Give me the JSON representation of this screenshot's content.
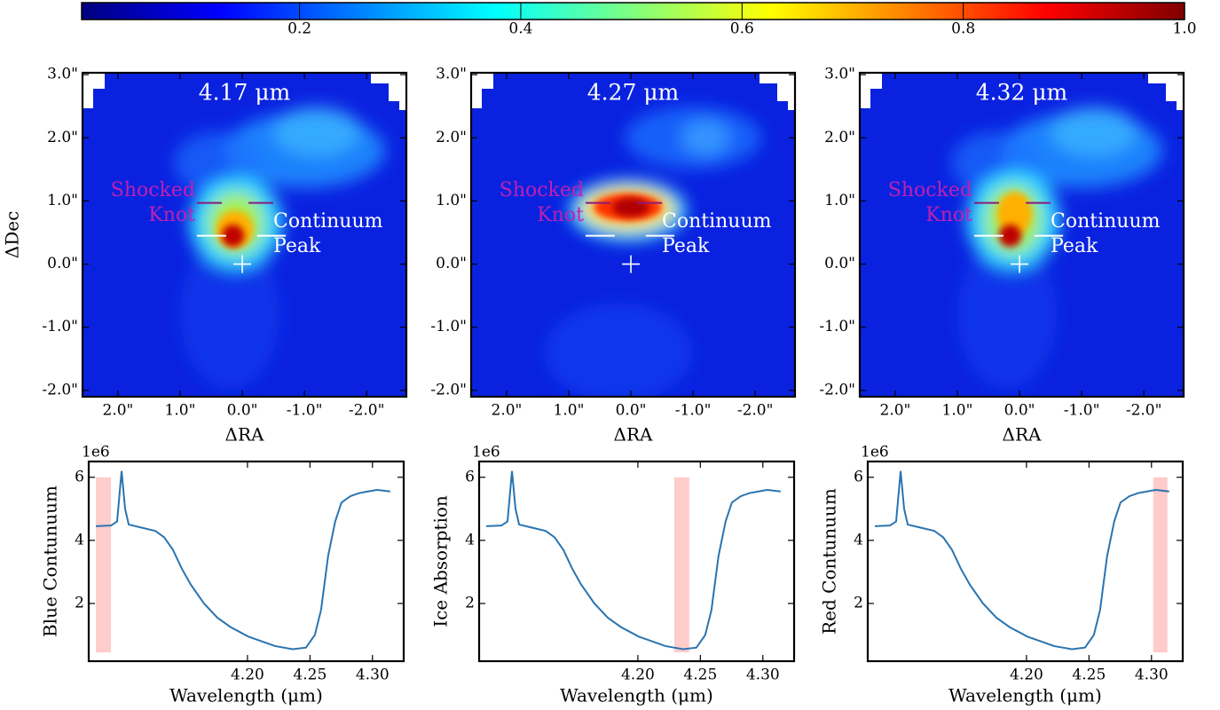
{
  "colorbar": {
    "colormap": "jet",
    "lim": [
      0.003,
      1.0
    ],
    "ticks": [
      0.2,
      0.4,
      0.6,
      0.8,
      {
        "value": 1.0,
        "label": "1.0"
      }
    ]
  },
  "chart_data": [
    {
      "type": "image",
      "title": "4.17 μm",
      "xlabel": "ΔRA",
      "ylabel": "ΔDec",
      "xlim": [
        2.57,
        -2.64
      ],
      "ylim": [
        -2.1,
        3.03
      ],
      "xticks": [
        {
          "value": 2,
          "label": "2.0\""
        },
        {
          "value": 1,
          "label": "1.0\""
        },
        {
          "value": 0,
          "label": "0.0\""
        },
        {
          "value": -1,
          "label": "-1.0\""
        },
        {
          "value": -2,
          "label": "-2.0\""
        }
      ],
      "yticks": [
        {
          "value": 3,
          "label": "3.0\""
        },
        {
          "value": 2,
          "label": "2.0\""
        },
        {
          "value": 1,
          "label": "1.0\""
        },
        {
          "value": 0,
          "label": "0.0\""
        },
        {
          "value": -1,
          "label": "-1.0\""
        },
        {
          "value": -2,
          "label": "-2.0\""
        }
      ],
      "markers": [
        {
          "x": 0,
          "y": 0,
          "color": "#ffffff"
        }
      ],
      "segments": [
        {
          "x": [
            0.73,
            0.26
          ],
          "y": [
            0.45,
            0.45
          ],
          "color": "#ffffff"
        },
        {
          "x": [
            -0.24,
            -0.7
          ],
          "y": [
            0.45,
            0.45
          ],
          "color": "#ffffff"
        },
        {
          "x": [
            0.73,
            0.33
          ],
          "y": [
            0.97,
            0.97
          ],
          "color": "#8a1a7a"
        },
        {
          "x": [
            -0.1,
            -0.5
          ],
          "y": [
            0.97,
            0.97
          ],
          "color": "#8a1a7a"
        }
      ],
      "annotations": [
        {
          "lines": [
            "Shocked",
            "Knot"
          ],
          "color": "#c020b0"
        },
        {
          "lines": [
            "Continuum",
            "Peak"
          ],
          "color": "#ffffff"
        }
      ]
    },
    {
      "type": "image",
      "title": "4.27 μm",
      "xlabel": "ΔRA",
      "xlim": [
        2.57,
        -2.64
      ],
      "ylim": [
        -2.1,
        3.03
      ],
      "xticks": [
        {
          "value": 2,
          "label": "2.0\""
        },
        {
          "value": 1,
          "label": "1.0\""
        },
        {
          "value": 0,
          "label": "0.0\""
        },
        {
          "value": -1,
          "label": "-1.0\""
        },
        {
          "value": -2,
          "label": "-2.0\""
        }
      ],
      "yticks": [
        {
          "value": 3,
          "label": "3.0\""
        },
        {
          "value": 2,
          "label": "2.0\""
        },
        {
          "value": 1,
          "label": "1.0\""
        },
        {
          "value": 0,
          "label": "0.0\""
        },
        {
          "value": -1,
          "label": "-1.0\""
        },
        {
          "value": -2,
          "label": "-2.0\""
        }
      ],
      "markers": [
        {
          "x": 0,
          "y": 0,
          "color": "#ffffff"
        }
      ],
      "segments": [
        {
          "x": [
            0.73,
            0.26
          ],
          "y": [
            0.45,
            0.45
          ],
          "color": "#ffffff"
        },
        {
          "x": [
            -0.24,
            -0.7
          ],
          "y": [
            0.45,
            0.45
          ],
          "color": "#ffffff"
        },
        {
          "x": [
            0.73,
            0.33
          ],
          "y": [
            0.97,
            0.97
          ],
          "color": "#8a1a7a"
        },
        {
          "x": [
            -0.1,
            -0.5
          ],
          "y": [
            0.97,
            0.97
          ],
          "color": "#8a1a7a"
        }
      ],
      "annotations": [
        {
          "lines": [
            "Shocked",
            "Knot"
          ],
          "color": "#c020b0"
        },
        {
          "lines": [
            "Continuum",
            "Peak"
          ],
          "color": "#ffffff"
        }
      ]
    },
    {
      "type": "image",
      "title": "4.32 μm",
      "xlabel": "ΔRA",
      "xlim": [
        2.57,
        -2.64
      ],
      "ylim": [
        -2.1,
        3.03
      ],
      "xticks": [
        {
          "value": 2,
          "label": "2.0\""
        },
        {
          "value": 1,
          "label": "1.0\""
        },
        {
          "value": 0,
          "label": "0.0\""
        },
        {
          "value": -1,
          "label": "-1.0\""
        },
        {
          "value": -2,
          "label": "-2.0\""
        }
      ],
      "yticks": [
        {
          "value": 3,
          "label": "3.0\""
        },
        {
          "value": 2,
          "label": "2.0\""
        },
        {
          "value": 1,
          "label": "1.0\""
        },
        {
          "value": 0,
          "label": "0.0\""
        },
        {
          "value": -1,
          "label": "-1.0\""
        },
        {
          "value": -2,
          "label": "-2.0\""
        }
      ],
      "markers": [
        {
          "x": 0,
          "y": 0,
          "color": "#ffffff"
        }
      ],
      "segments": [
        {
          "x": [
            0.73,
            0.26
          ],
          "y": [
            0.45,
            0.45
          ],
          "color": "#ffffff"
        },
        {
          "x": [
            -0.24,
            -0.7
          ],
          "y": [
            0.45,
            0.45
          ],
          "color": "#ffffff"
        },
        {
          "x": [
            0.73,
            0.33
          ],
          "y": [
            0.97,
            0.97
          ],
          "color": "#8a1a7a"
        },
        {
          "x": [
            -0.1,
            -0.5
          ],
          "y": [
            0.97,
            0.97
          ],
          "color": "#8a1a7a"
        }
      ],
      "annotations": [
        {
          "lines": [
            "Shocked",
            "Knot"
          ],
          "color": "#c020b0"
        },
        {
          "lines": [
            "Continuum",
            "Peak"
          ],
          "color": "#ffffff"
        }
      ]
    },
    {
      "type": "line",
      "xlabel": "Wavelength (μm)",
      "ylabel": "Blue Contunuum",
      "offset_label": "1e6",
      "xlim": [
        4.073,
        4.325
      ],
      "ylim": [
        0.17,
        6.5
      ],
      "xticks": [
        {
          "value": 4.2,
          "label": "4.20"
        },
        4.25,
        {
          "value": 4.3,
          "label": "4.30"
        }
      ],
      "yticks": [
        2,
        4,
        6
      ],
      "x": [
        4.0787,
        4.0908,
        4.0957,
        4.0993,
        4.1021,
        4.105,
        4.1156,
        4.1262,
        4.1333,
        4.1404,
        4.1475,
        4.1546,
        4.1652,
        4.1759,
        4.1865,
        4.1936,
        4.2007,
        4.2113,
        4.222,
        4.2362,
        4.2468,
        4.2539,
        4.2589,
        4.2645,
        4.2702,
        4.2752,
        4.2823,
        4.2894,
        4.2965,
        4.3035,
        4.3142
      ],
      "series": [
        {
          "color": "#2a74b0",
          "values": [
            4.45,
            4.47,
            4.6,
            6.2,
            5.0,
            4.5,
            4.4,
            4.3,
            4.1,
            3.7,
            3.1,
            2.6,
            2.0,
            1.55,
            1.25,
            1.1,
            0.95,
            0.8,
            0.65,
            0.55,
            0.6,
            1.0,
            1.8,
            3.5,
            4.6,
            5.2,
            5.4,
            5.5,
            5.55,
            5.6,
            5.55
          ]
        }
      ],
      "bands": [
        {
          "xmin": 4.0787,
          "xmax": 4.0908,
          "ymin": 0.45,
          "ymax": 6.0,
          "color": "#ffcccc"
        }
      ]
    },
    {
      "type": "line",
      "xlabel": "Wavelength (μm)",
      "ylabel": "Ice Absorption",
      "offset_label": "1e6",
      "xlim": [
        4.073,
        4.325
      ],
      "ylim": [
        0.17,
        6.5
      ],
      "xticks": [
        {
          "value": 4.2,
          "label": "4.20"
        },
        4.25,
        {
          "value": 4.3,
          "label": "4.30"
        }
      ],
      "yticks": [
        2,
        4,
        6
      ],
      "x": [
        4.0787,
        4.0908,
        4.0957,
        4.0993,
        4.1021,
        4.105,
        4.1156,
        4.1262,
        4.1333,
        4.1404,
        4.1475,
        4.1546,
        4.1652,
        4.1759,
        4.1865,
        4.1936,
        4.2007,
        4.2113,
        4.222,
        4.2362,
        4.2468,
        4.2539,
        4.2589,
        4.2645,
        4.2702,
        4.2752,
        4.2823,
        4.2894,
        4.2965,
        4.3035,
        4.3142
      ],
      "series": [
        {
          "color": "#2a74b0",
          "values": [
            4.45,
            4.47,
            4.6,
            6.2,
            5.0,
            4.5,
            4.4,
            4.3,
            4.1,
            3.7,
            3.1,
            2.6,
            2.0,
            1.55,
            1.25,
            1.1,
            0.95,
            0.8,
            0.65,
            0.55,
            0.6,
            1.0,
            1.8,
            3.5,
            4.6,
            5.2,
            5.4,
            5.5,
            5.55,
            5.6,
            5.55
          ]
        }
      ],
      "bands": [
        {
          "xmin": 4.2291,
          "xmax": 4.2411,
          "ymin": 0.45,
          "ymax": 6.0,
          "color": "#ffcccc"
        }
      ]
    },
    {
      "type": "line",
      "xlabel": "Wavelength (μm)",
      "ylabel": "Red Contunuum",
      "offset_label": "1e6",
      "xlim": [
        4.073,
        4.325
      ],
      "ylim": [
        0.17,
        6.5
      ],
      "xticks": [
        {
          "value": 4.2,
          "label": "4.20"
        },
        4.25,
        {
          "value": 4.3,
          "label": "4.30"
        }
      ],
      "yticks": [
        2,
        4,
        6
      ],
      "x": [
        4.0787,
        4.0908,
        4.0957,
        4.0993,
        4.1021,
        4.105,
        4.1156,
        4.1262,
        4.1333,
        4.1404,
        4.1475,
        4.1546,
        4.1652,
        4.1759,
        4.1865,
        4.1936,
        4.2007,
        4.2113,
        4.222,
        4.2362,
        4.2468,
        4.2539,
        4.2589,
        4.2645,
        4.2702,
        4.2752,
        4.2823,
        4.2894,
        4.2965,
        4.3035,
        4.3142
      ],
      "series": [
        {
          "color": "#2a74b0",
          "values": [
            4.45,
            4.47,
            4.6,
            6.2,
            5.0,
            4.5,
            4.4,
            4.3,
            4.1,
            3.7,
            3.1,
            2.6,
            2.0,
            1.55,
            1.25,
            1.1,
            0.95,
            0.8,
            0.65,
            0.55,
            0.6,
            1.0,
            1.8,
            3.5,
            4.6,
            5.2,
            5.4,
            5.5,
            5.55,
            5.6,
            5.55
          ]
        }
      ],
      "bands": [
        {
          "xmin": 4.3014,
          "xmax": 4.3128,
          "ymin": 0.45,
          "ymax": 6.0,
          "color": "#ffcccc"
        }
      ]
    }
  ]
}
